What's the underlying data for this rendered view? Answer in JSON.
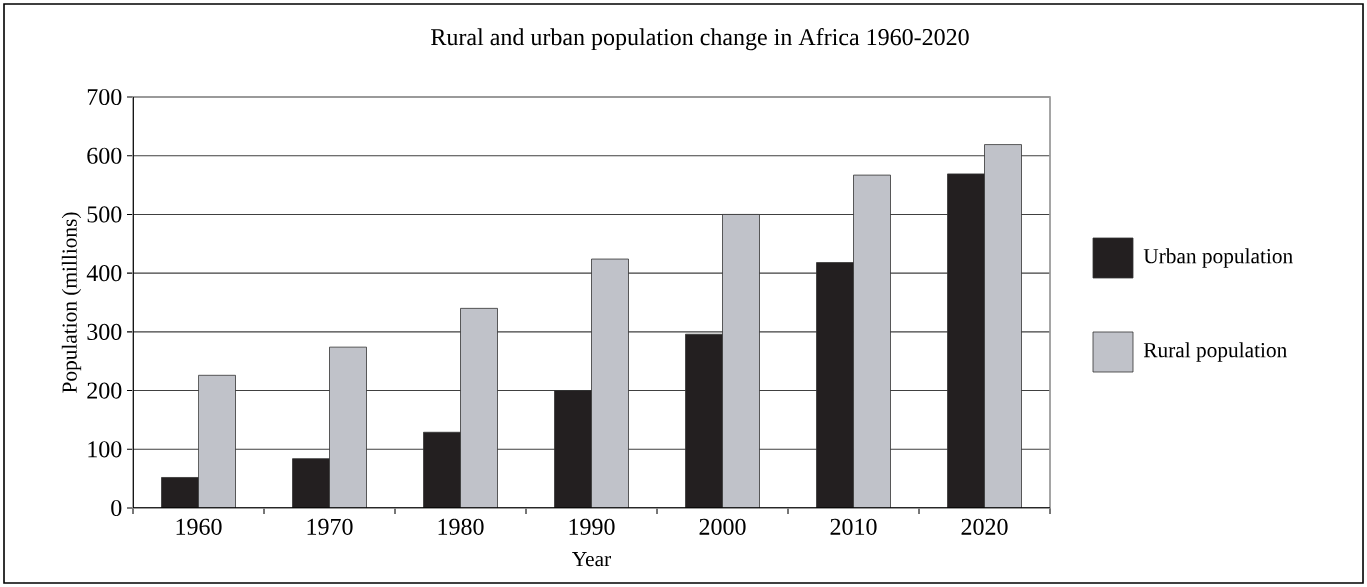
{
  "chart_data": {
    "type": "bar",
    "title": "Rural and urban population change in Africa 1960-2020",
    "xlabel": "Year",
    "ylabel": "Population (millions)",
    "categories": [
      "1960",
      "1970",
      "1980",
      "1990",
      "2000",
      "2010",
      "2020"
    ],
    "series": [
      {
        "name": "Urban population",
        "color": "#231f20",
        "values": [
          52,
          84,
          129,
          200,
          296,
          418,
          569
        ]
      },
      {
        "name": "Rural population",
        "color": "#c0c2c9",
        "values": [
          226,
          274,
          340,
          424,
          500,
          567,
          619
        ]
      }
    ],
    "ylim": [
      0,
      700
    ],
    "yticks": [
      0,
      100,
      200,
      300,
      400,
      500,
      600,
      700
    ],
    "grid": "y",
    "legend": "right"
  }
}
